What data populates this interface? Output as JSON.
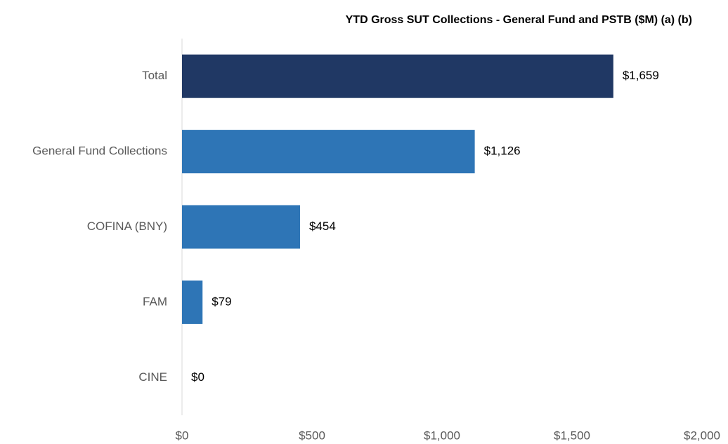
{
  "chart_data": {
    "type": "hbar",
    "title": "YTD Gross SUT Collections - General Fund and PSTB ($M) (a) (b)",
    "categories": [
      "Total",
      "General Fund Collections",
      "COFINA (BNY)",
      "FAM",
      "CINE"
    ],
    "values": [
      1659,
      1126,
      454,
      79,
      0
    ],
    "value_labels": [
      "$1,659",
      "$1,126",
      "$454",
      "$79",
      "$0"
    ],
    "colors": [
      "#203864",
      "#2e75b6",
      "#2e75b6",
      "#2e75b6",
      "#2e75b6"
    ],
    "xlim": [
      0,
      2000
    ],
    "xticks": [
      {
        "value": 0,
        "label": "$0"
      },
      {
        "value": 500,
        "label": "$500"
      },
      {
        "value": 1000,
        "label": "$1,000"
      },
      {
        "value": 1500,
        "label": "$1,500"
      },
      {
        "value": 2000,
        "label": "$2,000"
      }
    ],
    "grid": false
  }
}
